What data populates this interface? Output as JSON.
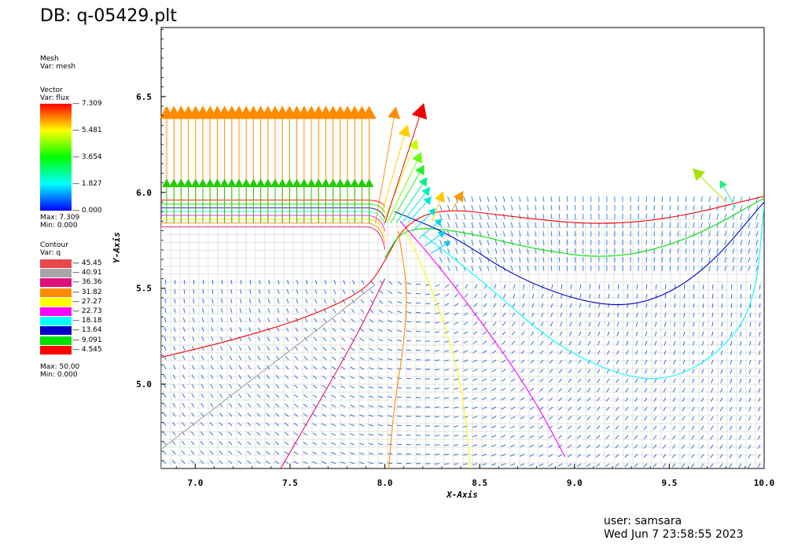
{
  "title": "DB: q-05429.plt",
  "legend": {
    "mesh": {
      "label": "Mesh",
      "var": "Var: mesh"
    },
    "vector": {
      "label": "Vector",
      "var": "Var: flux",
      "ticks": [
        "7.309",
        "5.481",
        "3.654",
        "1.827",
        "0.000"
      ],
      "max": "Max: 7.309",
      "min": "Min: 0.000",
      "colors": [
        "#ff0000",
        "#ffff00",
        "#00ff00",
        "#00ffff",
        "#0000ff"
      ]
    },
    "contour": {
      "label": "Contour",
      "var": "Var: q",
      "items": [
        {
          "value": "45.45",
          "color": "#e8484a"
        },
        {
          "value": "40.91",
          "color": "#a6a6a6"
        },
        {
          "value": "36.36",
          "color": "#e0107a"
        },
        {
          "value": "31.82",
          "color": "#ff8c00"
        },
        {
          "value": "27.27",
          "color": "#ffff00"
        },
        {
          "value": "22.73",
          "color": "#ff00ff"
        },
        {
          "value": "18.18",
          "color": "#00ffff"
        },
        {
          "value": "13.64",
          "color": "#0000c8"
        },
        {
          "value": "9.091",
          "color": "#00e000"
        },
        {
          "value": "4.545",
          "color": "#ff0000"
        }
      ],
      "max": "Max: 50.00",
      "min": "Min: 0.000"
    }
  },
  "user": {
    "line1": "user: samsara",
    "line2": "Wed Jun  7 23:58:55 2023"
  },
  "chart_data": {
    "type": "vector-contour-field",
    "xlabel": "X-Axis",
    "ylabel": "Y-Axis",
    "xlim": [
      6.82,
      10.0
    ],
    "ylim": [
      4.56,
      6.86
    ],
    "xticks": [
      "7.0",
      "7.5",
      "8.0",
      "8.5",
      "9.0",
      "9.5",
      "10.0"
    ],
    "xtick_values": [
      7.0,
      7.5,
      8.0,
      8.5,
      9.0,
      9.5,
      10.0
    ],
    "yticks": [
      "5.0",
      "5.5",
      "6.0",
      "6.5"
    ],
    "ytick_values": [
      5.0,
      5.5,
      6.0,
      6.5
    ],
    "contours": [
      {
        "level": "4.545",
        "color": "#ff0000",
        "points": [
          [
            6.82,
            5.14
          ],
          [
            7.2,
            5.23
          ],
          [
            7.6,
            5.35
          ],
          [
            7.9,
            5.49
          ],
          [
            8.0,
            5.64
          ],
          [
            8.1,
            5.83
          ],
          [
            8.3,
            5.92
          ],
          [
            8.7,
            5.87
          ],
          [
            9.1,
            5.83
          ],
          [
            9.5,
            5.86
          ],
          [
            10.0,
            5.98
          ]
        ]
      },
      {
        "level": "9.091",
        "color": "#00e000",
        "points": [
          [
            8.0,
            5.66
          ],
          [
            8.1,
            5.82
          ],
          [
            8.4,
            5.8
          ],
          [
            8.8,
            5.7
          ],
          [
            9.2,
            5.65
          ],
          [
            9.6,
            5.75
          ],
          [
            10.0,
            5.97
          ]
        ]
      },
      {
        "level": "13.64",
        "color": "#0000c8",
        "points": [
          [
            8.05,
            5.9
          ],
          [
            8.35,
            5.78
          ],
          [
            8.7,
            5.55
          ],
          [
            9.1,
            5.41
          ],
          [
            9.4,
            5.42
          ],
          [
            9.7,
            5.6
          ],
          [
            10.0,
            5.95
          ]
        ]
      },
      {
        "level": "18.18",
        "color": "#00ffff",
        "points": [
          [
            8.2,
            5.78
          ],
          [
            8.5,
            5.55
          ],
          [
            8.9,
            5.2
          ],
          [
            9.25,
            5.04
          ],
          [
            9.5,
            5.02
          ],
          [
            9.75,
            5.15
          ],
          [
            9.95,
            5.4
          ],
          [
            10.0,
            5.93
          ]
        ]
      },
      {
        "level": "22.73",
        "color": "#ff00ff",
        "points": [
          [
            8.08,
            5.85
          ],
          [
            8.3,
            5.6
          ],
          [
            8.6,
            5.2
          ],
          [
            8.8,
            4.9
          ],
          [
            8.95,
            4.62
          ]
        ]
      },
      {
        "level": "27.27",
        "color": "#ffff00",
        "points": [
          [
            8.1,
            5.82
          ],
          [
            8.25,
            5.5
          ],
          [
            8.38,
            5.1
          ],
          [
            8.43,
            4.8
          ],
          [
            8.45,
            4.56
          ]
        ]
      },
      {
        "level": "31.82",
        "color": "#ff8c00",
        "points": [
          [
            8.07,
            5.8
          ],
          [
            8.12,
            5.5
          ],
          [
            8.1,
            5.2
          ],
          [
            8.05,
            4.9
          ],
          [
            8.02,
            4.56
          ]
        ]
      },
      {
        "level": "36.36",
        "color": "#e0107a",
        "points": [
          [
            8.0,
            5.55
          ],
          [
            7.85,
            5.25
          ],
          [
            7.65,
            4.9
          ],
          [
            7.45,
            4.56
          ]
        ]
      },
      {
        "level": "40.91",
        "color": "#a6a6a6",
        "points": [
          [
            7.95,
            5.52
          ],
          [
            7.6,
            5.25
          ],
          [
            7.2,
            4.95
          ],
          [
            6.82,
            4.66
          ]
        ]
      }
    ],
    "boundary_curves": [
      {
        "color": "#ff0000",
        "y": 5.96
      },
      {
        "color": "#00e000",
        "y": 5.94
      },
      {
        "color": "#0000c8",
        "y": 5.92
      },
      {
        "color": "#00ffff",
        "y": 5.9
      },
      {
        "color": "#ff00ff",
        "y": 5.88
      },
      {
        "color": "#ffff00",
        "y": 5.86
      },
      {
        "color": "#ff8c00",
        "y": 5.84
      },
      {
        "color": "#e0107a",
        "y": 5.82
      }
    ],
    "vector_rows": [
      {
        "y_top": 6.45,
        "color": "#ff8c00",
        "magnitude": 7.0
      },
      {
        "y_top": 6.07,
        "color": "#22cc00",
        "magnitude": 3.4
      }
    ]
  }
}
